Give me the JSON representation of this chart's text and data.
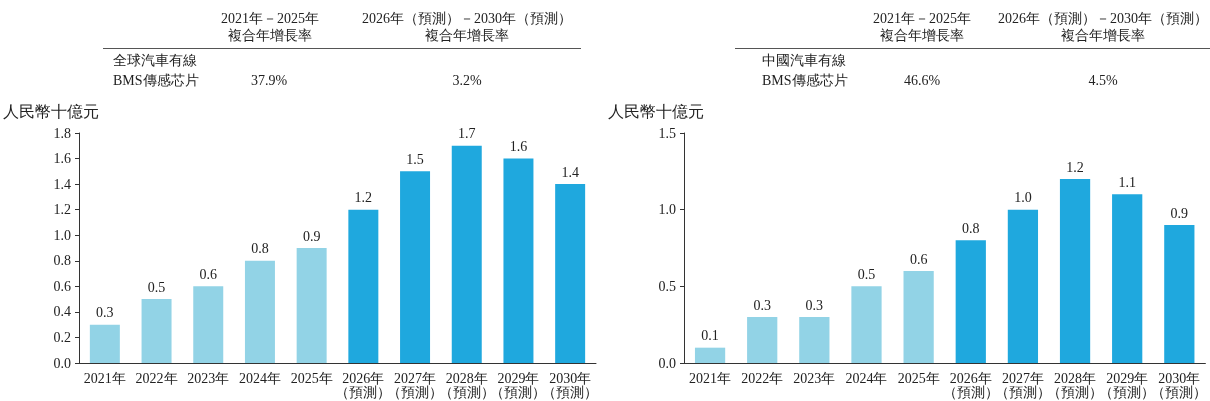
{
  "chart_data": [
    {
      "type": "bar",
      "ylabel": "人民幣十億元",
      "annotations": [
        "2021年－2025年",
        "複合年增長率",
        "2026年（預測）－2030年（預測）",
        "複合年增長率",
        "全球汽車有線",
        "BMS傳感芯片",
        "37.9%",
        "3.2%"
      ],
      "categories": [
        "2021年",
        "2022年",
        "2023年",
        "2024年",
        "2025年",
        "2026年（預測）",
        "2027年（預測）",
        "2028年（預測）",
        "2029年（預測）",
        "2030年（預測）"
      ],
      "values": [
        0.3,
        0.5,
        0.6,
        0.8,
        0.9,
        1.2,
        1.5,
        1.7,
        1.6,
        1.4
      ],
      "value_labels": [
        "0.3",
        "0.5",
        "0.6",
        "0.8",
        "0.9",
        "1.2",
        "1.5",
        "1.7",
        "1.6",
        "1.4"
      ],
      "colors": [
        "#92d3e6",
        "#92d3e6",
        "#92d3e6",
        "#92d3e6",
        "#92d3e6",
        "#1fa8de",
        "#1fa8de",
        "#1fa8de",
        "#1fa8de",
        "#1fa8de"
      ],
      "ylim": [
        0,
        1.8
      ],
      "yticks": [
        {
          "value": 0,
          "label": "0.0"
        },
        {
          "value": 0.2,
          "label": "0.2"
        },
        {
          "value": 0.4,
          "label": "0.4"
        },
        {
          "value": 0.6,
          "label": "0.6"
        },
        {
          "value": 0.8,
          "label": "0.8"
        },
        {
          "value": 1.0,
          "label": "1.0"
        },
        {
          "value": 1.2,
          "label": "1.2"
        },
        {
          "value": 1.4,
          "label": "1.4"
        },
        {
          "value": 1.6,
          "label": "1.6"
        },
        {
          "value": 1.8,
          "label": "1.8"
        }
      ],
      "grid": false
    },
    {
      "type": "bar",
      "ylabel": "人民幣十億元",
      "annotations": [
        "2021年－2025年",
        "複合年增長率",
        "2026年（預測）－2030年（預測）",
        "複合年增長率",
        "中國汽車有線",
        "BMS傳感芯片",
        "46.6%",
        "4.5%"
      ],
      "categories": [
        "2021年",
        "2022年",
        "2023年",
        "2024年",
        "2025年",
        "2026年（預測）",
        "2027年（預測）",
        "2028年（預測）",
        "2029年（預測）",
        "2030年（預測）"
      ],
      "values": [
        0.1,
        0.3,
        0.3,
        0.5,
        0.6,
        0.8,
        1.0,
        1.2,
        1.1,
        0.9
      ],
      "value_labels": [
        "0.1",
        "0.3",
        "0.3",
        "0.5",
        "0.6",
        "0.8",
        "1.0",
        "1.2",
        "1.1",
        "0.9"
      ],
      "colors": [
        "#92d3e6",
        "#92d3e6",
        "#92d3e6",
        "#92d3e6",
        "#92d3e6",
        "#1fa8de",
        "#1fa8de",
        "#1fa8de",
        "#1fa8de",
        "#1fa8de"
      ],
      "ylim": [
        0,
        1.5
      ],
      "yticks": [
        {
          "value": 0,
          "label": "0.0"
        },
        {
          "value": 0.5,
          "label": "0.5"
        },
        {
          "value": 1.0,
          "label": "1.0"
        },
        {
          "value": 1.5,
          "label": "1.5"
        }
      ],
      "grid": false
    }
  ]
}
